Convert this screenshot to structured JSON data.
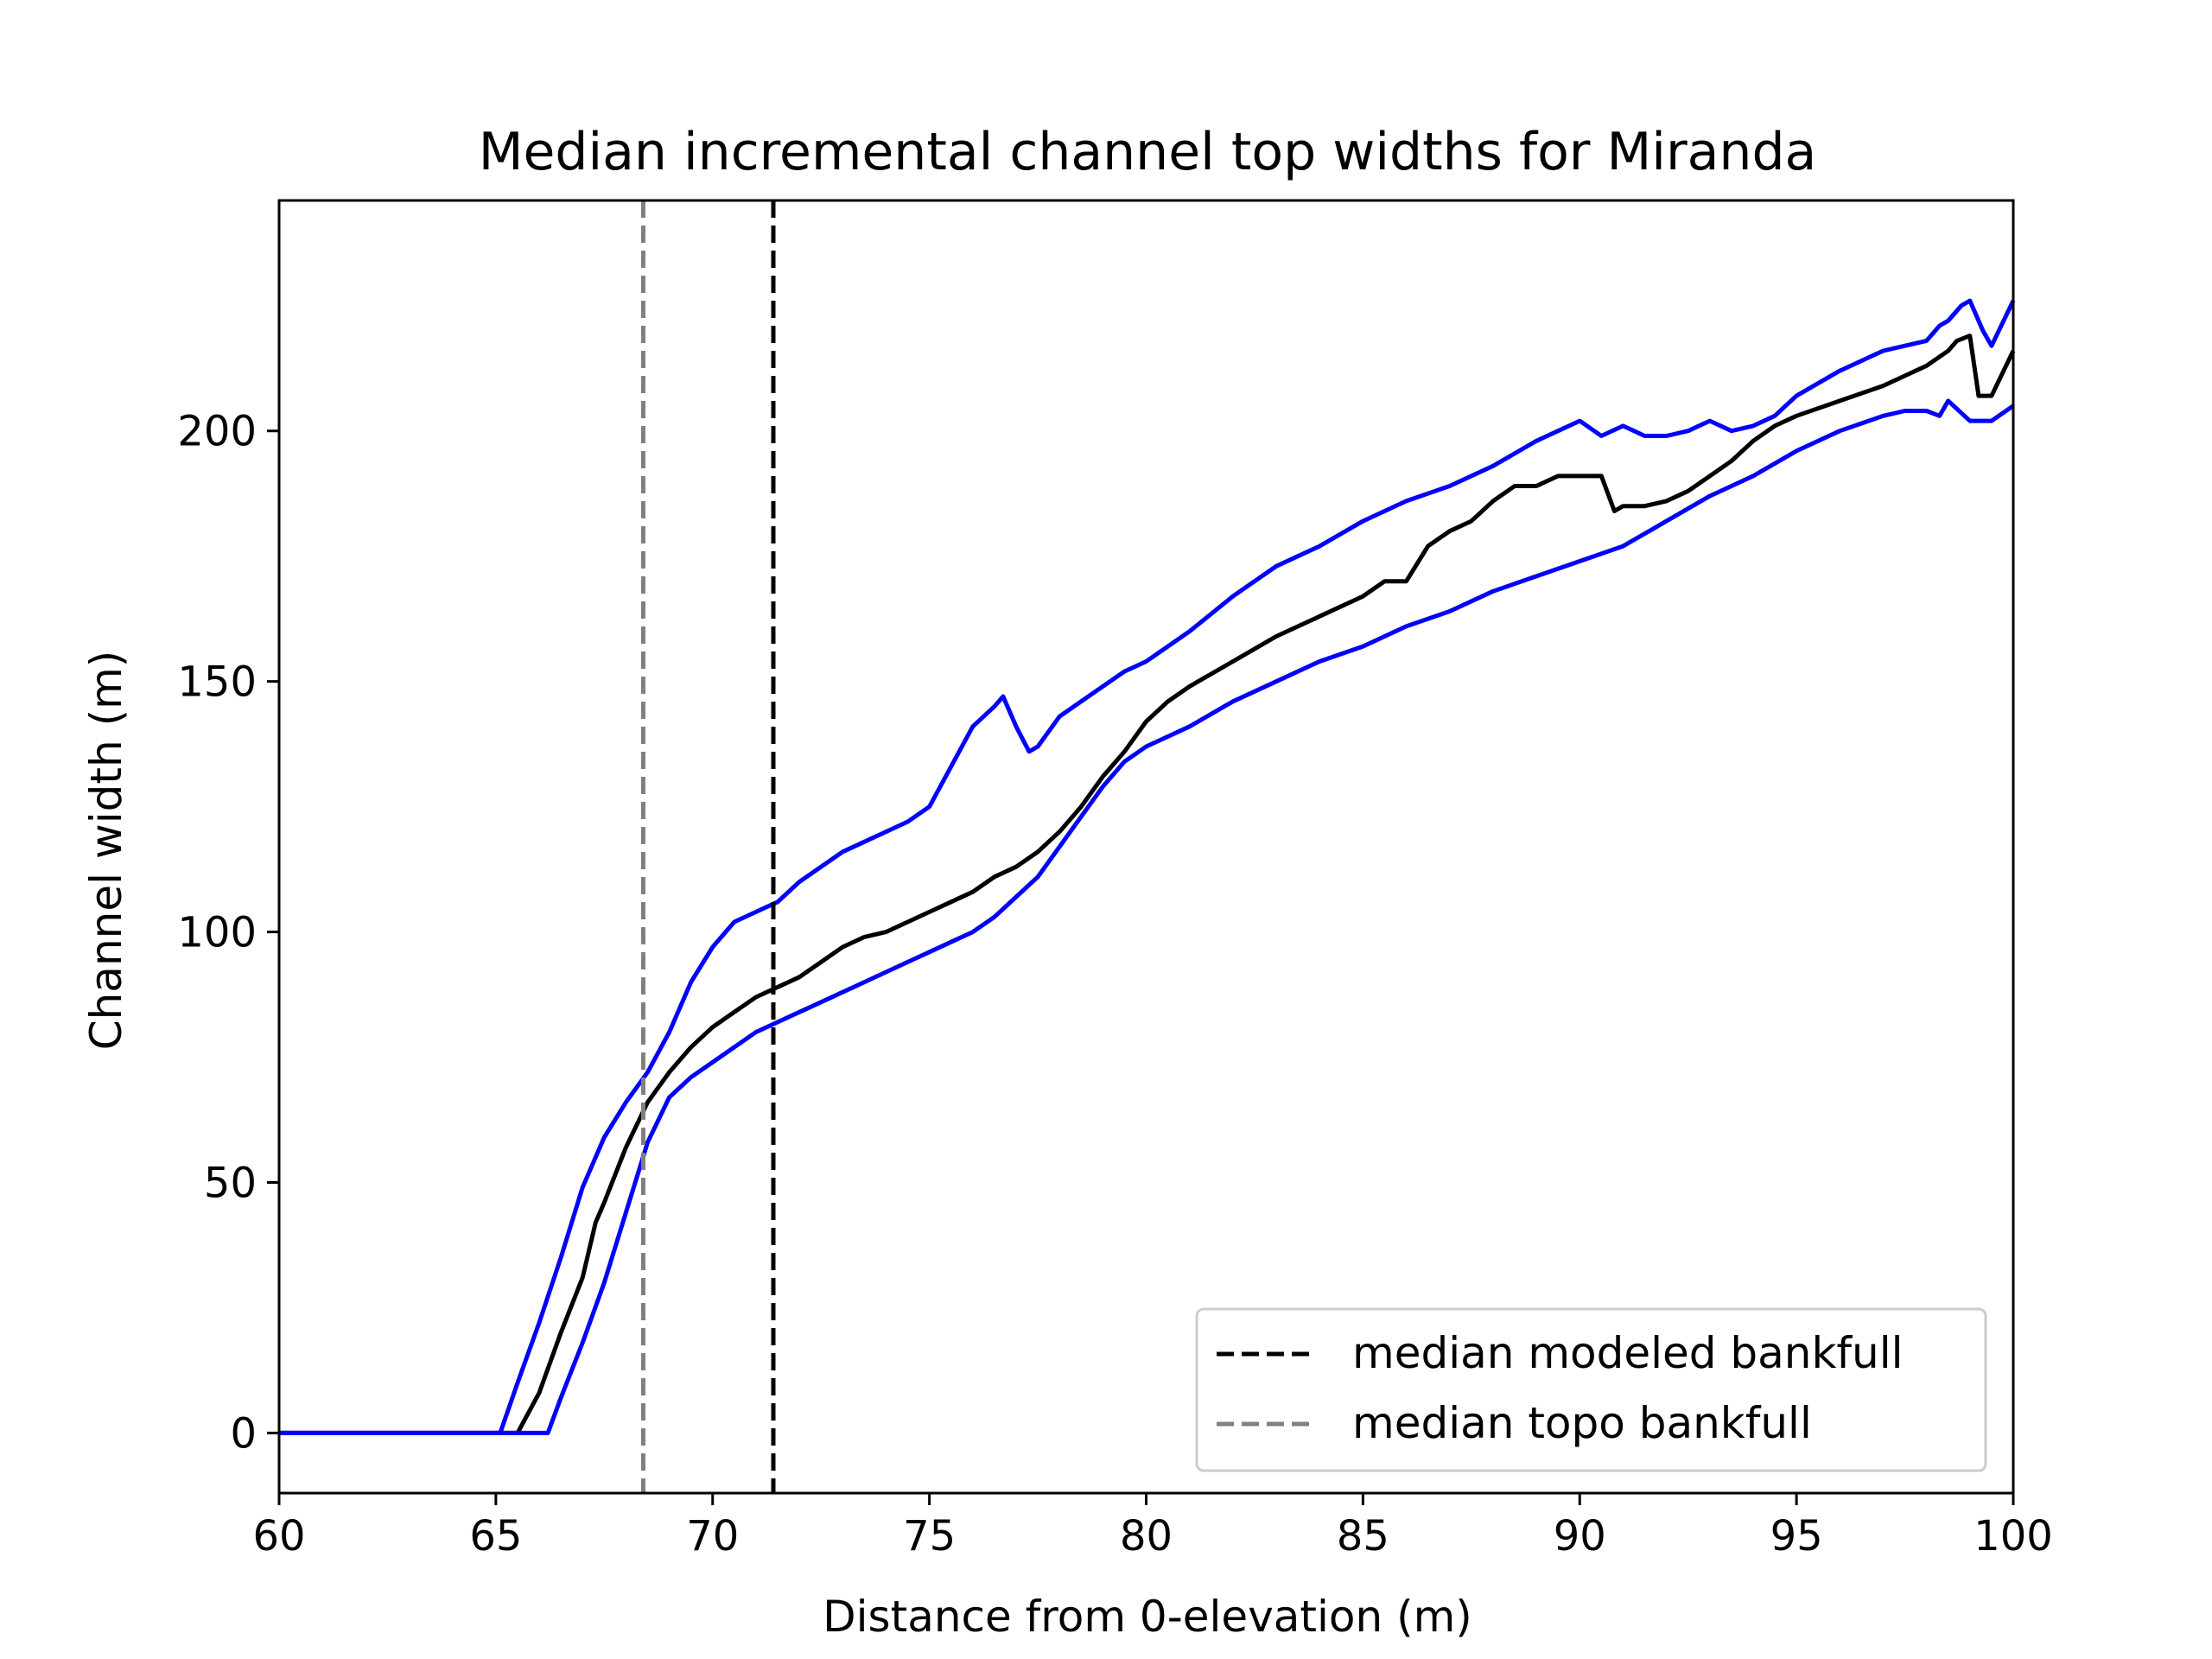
{
  "chart_data": {
    "type": "line",
    "title": "Median incremental channel top widths for Miranda",
    "xlabel": "Distance from 0-elevation (m)",
    "ylabel": "Channel width (m)",
    "xlim": [
      60,
      100
    ],
    "ylim": [
      -12,
      246
    ],
    "xticks": [
      60,
      65,
      70,
      75,
      80,
      85,
      90,
      95,
      100
    ],
    "yticks": [
      0,
      50,
      100,
      150,
      200
    ],
    "grid": false,
    "legend_position": "lower-right",
    "series": [
      {
        "color": "#0000ff",
        "style": "solid",
        "x": [
          60,
          62,
          65,
          65.1,
          65.5,
          66,
          66.5,
          67,
          67.5,
          68,
          68.5,
          69,
          69.5,
          70,
          70.5,
          71,
          71.5,
          72,
          72.5,
          73,
          73.5,
          74,
          74.5,
          75,
          75.5,
          76,
          76.5,
          76.7,
          77,
          77.3,
          77.5,
          78,
          78.5,
          79,
          79.5,
          80,
          81,
          82,
          83,
          84,
          85,
          86,
          87,
          88,
          89,
          89.5,
          90,
          90.5,
          91,
          91.5,
          92,
          92.5,
          93,
          93.5,
          94,
          94.5,
          95,
          96,
          97,
          97.5,
          98,
          98.3,
          98.5,
          98.8,
          99,
          99.3,
          99.5,
          100
        ],
        "values": [
          0,
          0,
          0,
          0,
          10,
          22,
          35,
          49,
          59,
          66,
          72,
          80,
          90,
          97,
          102,
          104,
          106,
          110,
          113,
          116,
          118,
          120,
          122,
          125,
          133,
          141,
          145,
          147,
          141,
          136,
          137,
          143,
          146,
          149,
          152,
          154,
          160,
          167,
          173,
          177,
          182,
          186,
          189,
          193,
          198,
          200,
          202,
          199,
          201,
          199,
          199,
          200,
          202,
          200,
          201,
          203,
          207,
          212,
          216,
          217,
          218,
          221,
          222,
          225,
          226,
          220,
          217,
          226
        ]
      },
      {
        "color": "#000000",
        "style": "solid",
        "x": [
          60,
          62,
          65,
          65.5,
          66,
          66.5,
          67,
          67.3,
          67.5,
          68,
          68.5,
          69,
          69.5,
          70,
          70.5,
          71,
          71.5,
          72,
          72.5,
          73,
          73.5,
          74,
          74.5,
          75,
          75.5,
          76,
          76.5,
          77,
          77.5,
          78,
          78.5,
          79,
          79.5,
          80,
          80.5,
          81,
          82,
          83,
          84,
          85,
          85.5,
          86,
          86.5,
          87,
          87.5,
          88,
          88.5,
          89,
          89.5,
          90,
          90.5,
          90.8,
          91,
          91.5,
          92,
          92.5,
          93,
          93.5,
          94,
          94.5,
          95,
          96,
          97,
          97.5,
          98,
          98.5,
          98.7,
          99,
          99.2,
          99.5,
          100
        ],
        "values": [
          0,
          0,
          0,
          0,
          8,
          20,
          31,
          42,
          46,
          57,
          66,
          72,
          77,
          81,
          84,
          87,
          89,
          91,
          94,
          97,
          99,
          100,
          102,
          104,
          106,
          108,
          111,
          113,
          116,
          120,
          125,
          131,
          136,
          142,
          146,
          149,
          154,
          159,
          163,
          167,
          170,
          170,
          177,
          180,
          182,
          186,
          189,
          189,
          191,
          191,
          191,
          184,
          185,
          185,
          186,
          188,
          191,
          194,
          198,
          201,
          203,
          206,
          209,
          211,
          213,
          216,
          218,
          219,
          207,
          207,
          216
        ]
      },
      {
        "color": "#0000ff",
        "style": "solid",
        "x": [
          60,
          62,
          66,
          66.2,
          66.5,
          67,
          67.5,
          68,
          68.5,
          69,
          69.5,
          70,
          70.5,
          71,
          71.5,
          72,
          72.5,
          73,
          73.5,
          74,
          74.5,
          75,
          75.5,
          76,
          76.5,
          77,
          77.5,
          78,
          78.5,
          79,
          79.5,
          80,
          81,
          82,
          83,
          84,
          85,
          86,
          87,
          88,
          89,
          90,
          91,
          92,
          93,
          94,
          95,
          96,
          97,
          97.5,
          98,
          98.3,
          98.5,
          99,
          99.5,
          100
        ],
        "values": [
          0,
          0,
          0,
          0,
          7,
          18,
          30,
          44,
          58,
          67,
          71,
          74,
          77,
          80,
          82,
          84,
          86,
          88,
          90,
          92,
          94,
          96,
          98,
          100,
          103,
          107,
          111,
          117,
          123,
          129,
          134,
          137,
          141,
          146,
          150,
          154,
          157,
          161,
          164,
          168,
          171,
          174,
          177,
          182,
          187,
          191,
          196,
          200,
          203,
          204,
          204,
          203,
          206,
          202,
          202,
          205
        ]
      }
    ],
    "vlines": [
      {
        "x": 71.4,
        "color": "#000000",
        "style": "dashed",
        "label": "median modeled bankfull"
      },
      {
        "x": 68.4,
        "color": "#808080",
        "style": "dashed",
        "label": "median topo bankfull"
      }
    ],
    "legend": [
      {
        "label": "median modeled bankfull",
        "color": "#000000",
        "style": "dashed"
      },
      {
        "label": "median topo bankfull",
        "color": "#808080",
        "style": "dashed"
      }
    ]
  }
}
